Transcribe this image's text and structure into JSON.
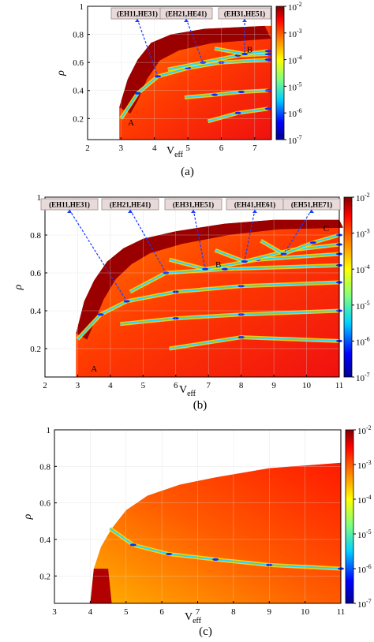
{
  "chart_data": [
    {
      "type": "heatmap",
      "panel": "a",
      "caption": "(a)",
      "xlabel": "V",
      "xlabel_sub": "eff",
      "ylabel": "ρ",
      "xlim": [
        2,
        7.5
      ],
      "ylim": [
        0.05,
        1
      ],
      "xticks": [
        "2",
        "3",
        "4",
        "5",
        "6",
        "7"
      ],
      "xtick_values": [
        2,
        3,
        4,
        5,
        6,
        7
      ],
      "yticks": [
        "1",
        "0.8",
        "0.6",
        "0.4",
        "0.2"
      ],
      "ytick_values": [
        1,
        0.8,
        0.6,
        0.4,
        0.2
      ],
      "colorbar": {
        "scale": "log",
        "min": 1e-07,
        "max": 0.01,
        "tick_base": [
          "10",
          "10",
          "10",
          "10",
          "10",
          "10"
        ],
        "tick_exp": [
          "-2",
          "-3",
          "-4",
          "-5",
          "-6",
          "-7"
        ]
      },
      "callouts": [
        {
          "label": "(EH11,HE31)",
          "target": [
            4.1,
            0.5
          ]
        },
        {
          "label": "(EH21,HE41)",
          "target": [
            5.45,
            0.6
          ]
        },
        {
          "label": "(EH31,HE51)",
          "target": [
            6.7,
            0.66
          ]
        }
      ],
      "point_labels": [
        {
          "text": "A",
          "x": 3.3,
          "y": 0.15
        },
        {
          "text": "B",
          "x": 6.85,
          "y": 0.67
        }
      ],
      "boundary": [
        [
          2.95,
          0.28
        ],
        [
          3.2,
          0.48
        ],
        [
          3.5,
          0.62
        ],
        [
          3.9,
          0.74
        ],
        [
          4.5,
          0.8
        ],
        [
          5.5,
          0.84
        ],
        [
          7.3,
          0.86
        ]
      ],
      "minima_curves": [
        [
          [
            3.0,
            0.2
          ],
          [
            3.5,
            0.38
          ],
          [
            4.1,
            0.5
          ],
          [
            5,
            0.56
          ],
          [
            6,
            0.6
          ],
          [
            7.4,
            0.62
          ]
        ],
        [
          [
            4.4,
            0.55
          ],
          [
            5.45,
            0.6
          ],
          [
            6.5,
            0.65
          ],
          [
            7.4,
            0.66
          ]
        ],
        [
          [
            5.8,
            0.7
          ],
          [
            6.7,
            0.66
          ],
          [
            7.4,
            0.68
          ]
        ],
        [
          [
            4.9,
            0.35
          ],
          [
            5.8,
            0.37
          ],
          [
            6.6,
            0.39
          ],
          [
            7.4,
            0.4
          ]
        ],
        [
          [
            5.6,
            0.18
          ],
          [
            6.5,
            0.24
          ],
          [
            7.4,
            0.27
          ]
        ]
      ]
    },
    {
      "type": "heatmap",
      "panel": "b",
      "caption": "(b)",
      "xlabel": "V",
      "xlabel_sub": "eff",
      "ylabel": "ρ",
      "xlim": [
        2,
        11
      ],
      "ylim": [
        0.05,
        1
      ],
      "xticks": [
        "2",
        "3",
        "4",
        "5",
        "6",
        "7",
        "8",
        "9",
        "10",
        "11"
      ],
      "xtick_values": [
        2,
        3,
        4,
        5,
        6,
        7,
        8,
        9,
        10,
        11
      ],
      "yticks": [
        "1",
        "0.8",
        "0.6",
        "0.4",
        "0.2"
      ],
      "ytick_values": [
        1,
        0.8,
        0.6,
        0.4,
        0.2
      ],
      "colorbar": {
        "scale": "log",
        "min": 1e-07,
        "max": 0.01,
        "tick_base": [
          "10",
          "10",
          "10",
          "10",
          "10",
          "10"
        ],
        "tick_exp": [
          "-2",
          "-3",
          "-4",
          "-5",
          "-6",
          "-7"
        ]
      },
      "callouts": [
        {
          "label": "(EH11,HE31)",
          "target": [
            4.5,
            0.45
          ]
        },
        {
          "label": "(EH21,HE41)",
          "target": [
            5.7,
            0.6
          ]
        },
        {
          "label": "(EH31,HE51)",
          "target": [
            6.9,
            0.62
          ]
        },
        {
          "label": "(EH41,HE61)",
          "target": [
            8.1,
            0.66
          ]
        },
        {
          "label": "(EH51,HE71)",
          "target": [
            9.3,
            0.7
          ]
        }
      ],
      "point_labels": [
        {
          "text": "A",
          "x": 3.5,
          "y": 0.08
        },
        {
          "text": "B",
          "x": 7.3,
          "y": 0.63
        },
        {
          "text": "C",
          "x": 10.6,
          "y": 0.82
        }
      ],
      "boundary": [
        [
          2.95,
          0.28
        ],
        [
          3.2,
          0.45
        ],
        [
          3.5,
          0.56
        ],
        [
          3.9,
          0.66
        ],
        [
          4.4,
          0.73
        ],
        [
          5,
          0.78
        ],
        [
          6,
          0.82
        ],
        [
          7.5,
          0.86
        ],
        [
          9,
          0.88
        ],
        [
          11,
          0.88
        ]
      ],
      "minima_curves": [
        [
          [
            3.0,
            0.25
          ],
          [
            3.7,
            0.38
          ],
          [
            4.5,
            0.45
          ],
          [
            6,
            0.5
          ],
          [
            8,
            0.53
          ],
          [
            11,
            0.55
          ]
        ],
        [
          [
            4.6,
            0.5
          ],
          [
            5.7,
            0.6
          ],
          [
            7.5,
            0.62
          ],
          [
            11,
            0.64
          ]
        ],
        [
          [
            5.8,
            0.67
          ],
          [
            6.9,
            0.62
          ],
          [
            8.5,
            0.67
          ],
          [
            11,
            0.7
          ]
        ],
        [
          [
            7.2,
            0.72
          ],
          [
            8.1,
            0.66
          ],
          [
            9.5,
            0.72
          ],
          [
            11,
            0.75
          ]
        ],
        [
          [
            8.6,
            0.77
          ],
          [
            9.3,
            0.7
          ],
          [
            10.2,
            0.76
          ],
          [
            11,
            0.8
          ]
        ],
        [
          [
            4.3,
            0.33
          ],
          [
            6,
            0.36
          ],
          [
            8,
            0.38
          ],
          [
            11,
            0.4
          ]
        ],
        [
          [
            5.8,
            0.2
          ],
          [
            8,
            0.26
          ],
          [
            11,
            0.24
          ]
        ]
      ]
    },
    {
      "type": "heatmap",
      "panel": "c",
      "caption": "(c)",
      "xlabel": "V",
      "xlabel_sub": "eff",
      "ylabel": "ρ",
      "xlim": [
        3,
        11
      ],
      "ylim": [
        0.05,
        1
      ],
      "xticks": [
        "3",
        "4",
        "5",
        "6",
        "7",
        "8",
        "9",
        "10",
        "11"
      ],
      "xtick_values": [
        3,
        4,
        5,
        6,
        7,
        8,
        9,
        10,
        11
      ],
      "yticks": [
        "1",
        "0.8",
        "0.6",
        "0.4",
        "0.2"
      ],
      "ytick_values": [
        1,
        0.8,
        0.6,
        0.4,
        0.2
      ],
      "colorbar": {
        "scale": "log",
        "min": 1e-07,
        "max": 0.01,
        "tick_base": [
          "10",
          "10",
          "10",
          "10",
          "10",
          "10"
        ],
        "tick_exp": [
          "-2",
          "-3",
          "-4",
          "-5",
          "-6",
          "-7"
        ]
      },
      "callouts": [],
      "point_labels": [],
      "boundary": [
        [
          4.0,
          0.05
        ],
        [
          4.1,
          0.24
        ],
        [
          4.3,
          0.36
        ],
        [
          4.6,
          0.46
        ],
        [
          5,
          0.56
        ],
        [
          5.6,
          0.64
        ],
        [
          6.5,
          0.7
        ],
        [
          7.5,
          0.74
        ],
        [
          9,
          0.79
        ],
        [
          11,
          0.82
        ]
      ],
      "minima_curves": [
        [
          [
            4.55,
            0.46
          ],
          [
            5.2,
            0.37
          ],
          [
            6.2,
            0.32
          ],
          [
            7.5,
            0.29
          ],
          [
            9,
            0.26
          ],
          [
            11,
            0.24
          ]
        ]
      ]
    }
  ]
}
